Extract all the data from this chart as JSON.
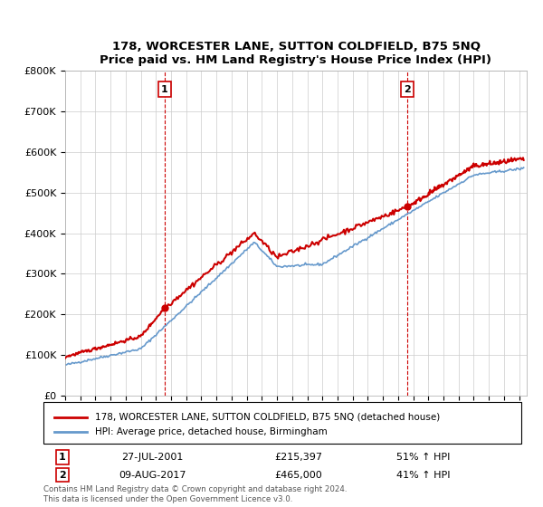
{
  "title": "178, WORCESTER LANE, SUTTON COLDFIELD, B75 5NQ",
  "subtitle": "Price paid vs. HM Land Registry's House Price Index (HPI)",
  "legend_line1": "178, WORCESTER LANE, SUTTON COLDFIELD, B75 5NQ (detached house)",
  "legend_line2": "HPI: Average price, detached house, Birmingham",
  "annotation1_label": "1",
  "annotation1_date": "27-JUL-2001",
  "annotation1_price": "£215,397",
  "annotation1_hpi": "51% ↑ HPI",
  "annotation2_label": "2",
  "annotation2_date": "09-AUG-2017",
  "annotation2_price": "£465,000",
  "annotation2_hpi": "41% ↑ HPI",
  "footer": "Contains HM Land Registry data © Crown copyright and database right 2024.\nThis data is licensed under the Open Government Licence v3.0.",
  "red_color": "#cc0000",
  "blue_color": "#6699cc",
  "vline_color": "#cc0000",
  "ylim": [
    0,
    800000
  ],
  "yticks": [
    0,
    100000,
    200000,
    300000,
    400000,
    500000,
    600000,
    700000,
    800000
  ],
  "ytick_labels": [
    "£0",
    "£100K",
    "£200K",
    "£300K",
    "£400K",
    "£500K",
    "£600K",
    "£700K",
    "£800K"
  ],
  "sale1_x": 2001.57,
  "sale1_y": 215397,
  "sale2_x": 2017.61,
  "sale2_y": 465000,
  "xmin": 1995,
  "xmax": 2025.5
}
